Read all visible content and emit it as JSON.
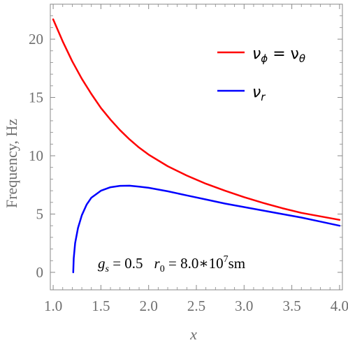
{
  "chart_data": {
    "type": "line",
    "xlabel": "x",
    "ylabel": "Frequency, Hz",
    "xlim": [
      0.97,
      4.03
    ],
    "ylim": [
      -1.5,
      23
    ],
    "x_ticks": [
      "1.0",
      "1.5",
      "2.0",
      "2.5",
      "3.0",
      "3.5",
      "4.0"
    ],
    "y_ticks": [
      "0",
      "5",
      "10",
      "15",
      "20"
    ],
    "grid": false,
    "legend_position": "top-right",
    "annotation": "g_s = 0.5   r_0 = 8.0*10^7 sm",
    "series": [
      {
        "name": "ν_φ = ν_θ",
        "color": "#ff0000",
        "x": [
          1.0,
          1.1,
          1.2,
          1.3,
          1.4,
          1.5,
          1.6,
          1.7,
          1.8,
          1.9,
          2.0,
          2.2,
          2.4,
          2.6,
          2.8,
          3.0,
          3.2,
          3.4,
          3.6,
          3.8,
          4.0
        ],
        "y": [
          21.7,
          19.8,
          18.1,
          16.6,
          15.3,
          14.1,
          13.1,
          12.2,
          11.4,
          10.7,
          10.1,
          9.1,
          8.3,
          7.6,
          7.0,
          6.45,
          5.95,
          5.5,
          5.1,
          4.8,
          4.5
        ]
      },
      {
        "name": "ν_r",
        "color": "#0000ff",
        "x": [
          1.21,
          1.215,
          1.23,
          1.26,
          1.3,
          1.35,
          1.4,
          1.5,
          1.6,
          1.7,
          1.8,
          1.9,
          2.0,
          2.2,
          2.4,
          2.6,
          2.8,
          3.0,
          3.2,
          3.4,
          3.6,
          3.8,
          4.0
        ],
        "y": [
          0.0,
          1.2,
          2.5,
          3.8,
          4.9,
          5.8,
          6.4,
          7.0,
          7.3,
          7.42,
          7.43,
          7.35,
          7.25,
          6.95,
          6.6,
          6.25,
          5.9,
          5.6,
          5.3,
          5.0,
          4.7,
          4.35,
          4.0
        ]
      }
    ]
  },
  "legend": {
    "items": [
      {
        "label": "ν",
        "sub": "ϕ",
        "rest": " = ν",
        "sub2": "θ",
        "color": "#ff0000"
      },
      {
        "label": "ν",
        "sub": "r",
        "rest": "",
        "sub2": "",
        "color": "#0000ff"
      }
    ]
  },
  "annotation_parts": {
    "g": "g",
    "g_sub": "s",
    "g_val": " = 0.5",
    "r": "r",
    "r_sub": "0",
    "r_val": " = 8.0∗10",
    "r_exp": "7",
    "r_unit": "sm"
  }
}
